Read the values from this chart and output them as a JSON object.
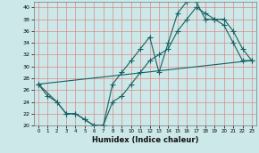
{
  "xlabel": "Humidex (Indice chaleur)",
  "bg_color": "#cce8e8",
  "line_color": "#1a6060",
  "grid_color": "#e08080",
  "xlim": [
    -0.5,
    23.5
  ],
  "ylim": [
    20,
    41
  ],
  "yticks": [
    20,
    22,
    24,
    26,
    28,
    30,
    32,
    34,
    36,
    38,
    40
  ],
  "xticks": [
    0,
    1,
    2,
    3,
    4,
    5,
    6,
    7,
    8,
    9,
    10,
    11,
    12,
    13,
    14,
    15,
    16,
    17,
    18,
    19,
    20,
    21,
    22,
    23
  ],
  "line1_x": [
    0,
    1,
    2,
    3,
    4,
    5,
    6,
    7,
    8,
    9,
    10,
    11,
    12,
    13,
    14,
    15,
    16,
    17,
    18,
    19,
    20,
    21,
    22,
    23
  ],
  "line1_y": [
    27,
    25,
    24,
    22,
    22,
    21,
    20,
    20,
    27,
    29,
    31,
    33,
    35,
    29,
    34,
    39,
    41,
    41,
    38,
    38,
    37,
    34,
    31,
    31
  ],
  "line2_x": [
    0,
    2,
    3,
    4,
    5,
    6,
    7,
    8,
    9,
    10,
    11,
    12,
    13,
    14,
    15,
    16,
    17,
    18,
    19,
    20,
    21,
    22,
    23
  ],
  "line2_y": [
    27,
    24,
    22,
    22,
    21,
    20,
    20,
    24,
    25,
    27,
    29,
    31,
    32,
    33,
    36,
    38,
    40,
    39,
    38,
    38,
    36,
    33,
    31
  ],
  "line3_x": [
    0,
    23
  ],
  "line3_y": [
    27,
    31
  ]
}
